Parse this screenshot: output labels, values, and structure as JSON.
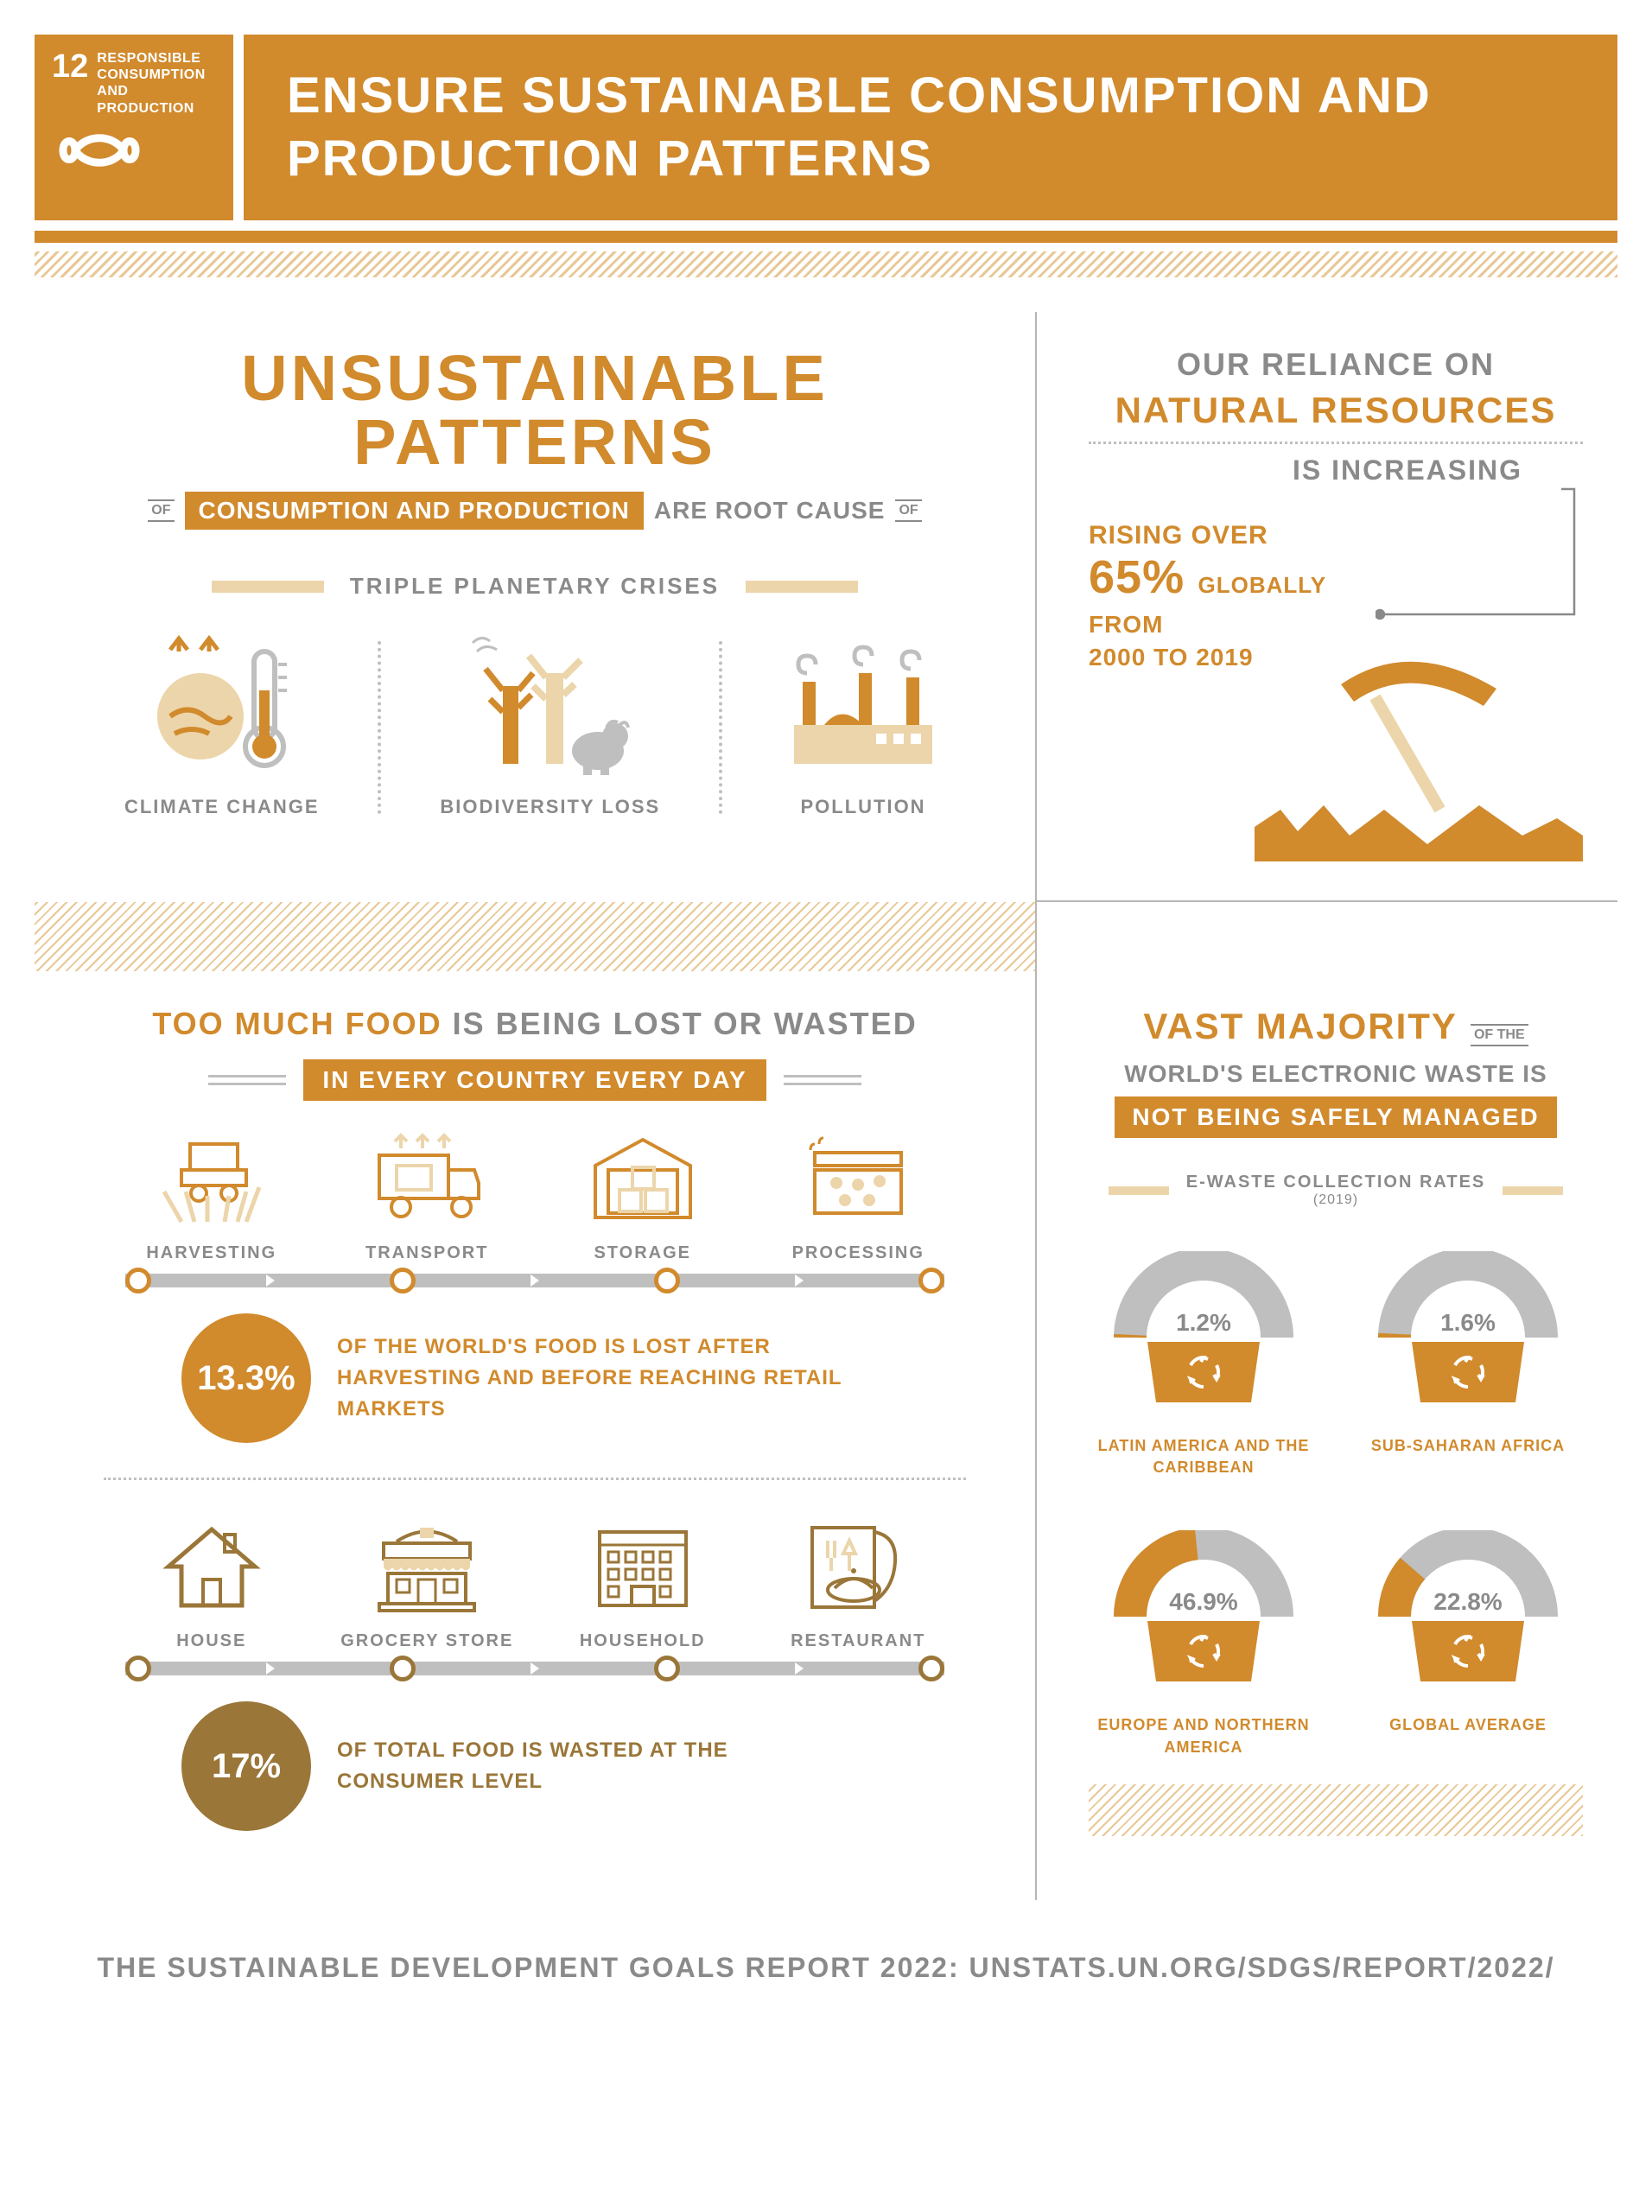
{
  "colors": {
    "primary": "#d18a2c",
    "cream": "#ecd5aa",
    "gray": "#8a8a8a",
    "lightgray": "#bfbfbf",
    "brown": "#9a7638",
    "white": "#ffffff"
  },
  "header": {
    "sdg_number": "12",
    "sdg_label": "RESPONSIBLE CONSUMPTION AND PRODUCTION",
    "title": "ENSURE SUSTAINABLE CONSUMPTION AND PRODUCTION PATTERNS"
  },
  "unsustainable": {
    "title": "UNSUSTAINABLE PATTERNS",
    "of": "OF",
    "highlight": "CONSUMPTION AND PRODUCTION",
    "suffix": "ARE ROOT CAUSE",
    "section_label": "TRIPLE PLANETARY CRISES",
    "crises": [
      {
        "label": "CLIMATE CHANGE"
      },
      {
        "label": "BIODIVERSITY LOSS"
      },
      {
        "label": "POLLUTION"
      }
    ]
  },
  "reliance": {
    "line1": "OUR RELIANCE ON",
    "line2": "NATURAL RESOURCES",
    "line3": "IS INCREASING",
    "stat_pre": "RISING OVER",
    "stat_big": "65%",
    "stat_glob": "GLOBALLY",
    "stat_from": "FROM",
    "stat_range": "2000 TO 2019"
  },
  "food": {
    "title_a": "TOO MUCH FOOD",
    "title_b": "IS BEING LOST OR WASTED",
    "band": "IN EVERY COUNTRY EVERY DAY",
    "supply_stages": [
      {
        "label": "HARVESTING"
      },
      {
        "label": "TRANSPORT"
      },
      {
        "label": "STORAGE"
      },
      {
        "label": "PROCESSING"
      }
    ],
    "supply_stat_pct": "13.3%",
    "supply_stat_text": "OF THE WORLD'S FOOD IS LOST AFTER HARVESTING AND BEFORE REACHING RETAIL MARKETS",
    "consumer_stages": [
      {
        "label": "HOUSE"
      },
      {
        "label": "GROCERY STORE"
      },
      {
        "label": "HOUSEHOLD"
      },
      {
        "label": "RESTAURANT"
      }
    ],
    "consumer_stat_pct": "17%",
    "consumer_stat_text": "OF TOTAL FOOD IS WASTED AT THE CONSUMER LEVEL"
  },
  "ewaste": {
    "title_big": "VAST MAJORITY",
    "title_of": "OF THE",
    "title_line2": "WORLD'S ELECTRONIC WASTE IS",
    "title_tag": "NOT BEING SAFELY MANAGED",
    "label": "E-WASTE COLLECTION RATES",
    "year": "(2019)",
    "gauge_bg": "#bfbfbf",
    "gauge_fg": "#d18a2c",
    "basket_color": "#d18a2c",
    "regions": [
      {
        "pct": 1.2,
        "pct_label": "1.2%",
        "name": "LATIN AMERICA AND THE CARIBBEAN"
      },
      {
        "pct": 1.6,
        "pct_label": "1.6%",
        "name": "SUB-SAHARAN AFRICA"
      },
      {
        "pct": 46.9,
        "pct_label": "46.9%",
        "name": "EUROPE AND NORTHERN AMERICA"
      },
      {
        "pct": 22.8,
        "pct_label": "22.8%",
        "name": "GLOBAL AVERAGE"
      }
    ]
  },
  "footer": "THE SUSTAINABLE DEVELOPMENT GOALS REPORT 2022: UNSTATS.UN.ORG/SDGS/REPORT/2022/"
}
